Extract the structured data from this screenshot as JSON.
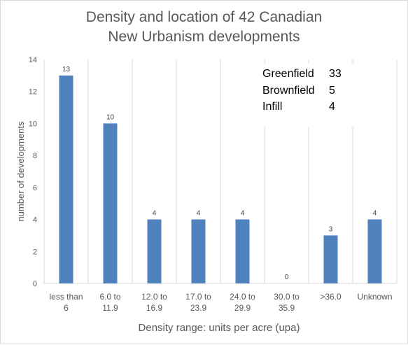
{
  "chart_data": {
    "type": "bar",
    "title_lines": [
      "Density and location of 42 Canadian",
      "New Urbanism developments"
    ],
    "xlabel": "Density range: units per acre (upa)",
    "ylabel": "number of developments",
    "categories": [
      [
        "less than",
        "6"
      ],
      [
        "6.0 to",
        "11.9"
      ],
      [
        "12.0  to",
        "16.9"
      ],
      [
        "17.0 to",
        "23.9"
      ],
      [
        "24.0 to",
        "29.9"
      ],
      [
        "30.0 to",
        "35.9"
      ],
      [
        ">36.0"
      ],
      [
        "Unknown"
      ]
    ],
    "values": [
      13,
      10,
      4,
      4,
      4,
      0,
      3,
      4
    ],
    "ylim": [
      0,
      14
    ],
    "yticks": [
      0,
      2,
      4,
      6,
      8,
      10,
      12,
      14
    ],
    "grid": "vertical",
    "bar_color": "#4f81bd",
    "inset_table": [
      {
        "label": "Greenfield",
        "value": "33"
      },
      {
        "label": "Brownfield",
        "value": "5"
      },
      {
        "label": "Infill",
        "value": "4"
      }
    ]
  }
}
